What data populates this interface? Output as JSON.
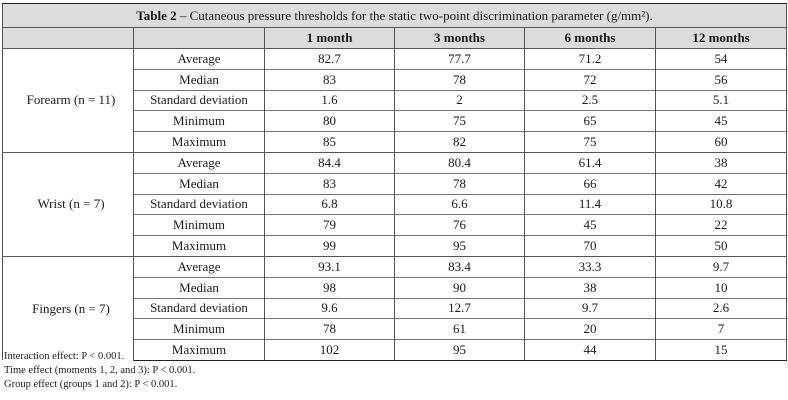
{
  "table": {
    "title_bold": "Table 2",
    "title_rest": " – Cutaneous pressure thresholds for the static two-point discrimination parameter (g/mm²).",
    "columns": [
      "1 month",
      "3 months",
      "6 months",
      "12 months"
    ],
    "groups": [
      {
        "label": "Forearm (n = 11)",
        "rows": [
          {
            "param": "Average",
            "values": [
              "82.7",
              "77.7",
              "71.2",
              "54"
            ]
          },
          {
            "param": "Median",
            "values": [
              "83",
              "78",
              "72",
              "56"
            ]
          },
          {
            "param": "Standard deviation",
            "values": [
              "1.6",
              "2",
              "2.5",
              "5.1"
            ]
          },
          {
            "param": "Minimum",
            "values": [
              "80",
              "75",
              "65",
              "45"
            ]
          },
          {
            "param": "Maximum",
            "values": [
              "85",
              "82",
              "75",
              "60"
            ]
          }
        ]
      },
      {
        "label": "Wrist (n = 7)",
        "rows": [
          {
            "param": "Average",
            "values": [
              "84.4",
              "80.4",
              "61.4",
              "38"
            ]
          },
          {
            "param": "Median",
            "values": [
              "83",
              "78",
              "66",
              "42"
            ]
          },
          {
            "param": "Standard deviation",
            "values": [
              "6.8",
              "6.6",
              "11.4",
              "10.8"
            ]
          },
          {
            "param": "Minimum",
            "values": [
              "79",
              "76",
              "45",
              "22"
            ]
          },
          {
            "param": "Maximum",
            "values": [
              "99",
              "95",
              "70",
              "50"
            ]
          }
        ]
      },
      {
        "label": "Fingers (n = 7)",
        "rows": [
          {
            "param": "Average",
            "values": [
              "93.1",
              "83.4",
              "33.3",
              "9.7"
            ]
          },
          {
            "param": "Median",
            "values": [
              "98",
              "90",
              "38",
              "10"
            ]
          },
          {
            "param": "Standard deviation",
            "values": [
              "9.6",
              "12.7",
              "9.7",
              "2.6"
            ]
          },
          {
            "param": "Minimum",
            "values": [
              "78",
              "61",
              "20",
              "7"
            ]
          },
          {
            "param": "Maximum",
            "values": [
              "102",
              "95",
              "44",
              "15"
            ]
          }
        ]
      }
    ]
  },
  "notes": [
    "Interaction effect: P < 0.001.",
    "Time effect (moments 1, 2, and 3): P < 0.001.",
    "Group effect (groups 1 and 2): P < 0.001."
  ]
}
